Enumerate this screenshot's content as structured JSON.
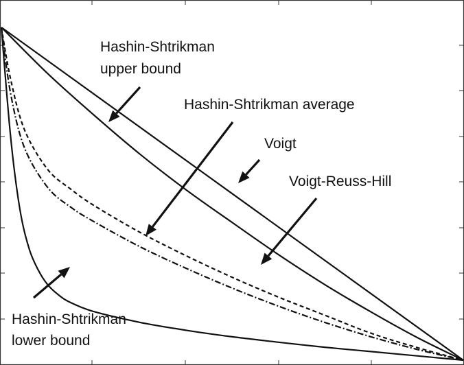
{
  "chart_data": {
    "type": "line",
    "xlim": [
      0,
      1
    ],
    "ylim": [
      0,
      1
    ],
    "grid": false,
    "legend": "none",
    "x_ticks_visible_labels": false,
    "y_ticks_visible_labels": false,
    "series": [
      {
        "name": "Voigt",
        "style": "solid",
        "x": [
          0,
          1
        ],
        "y": [
          0.924,
          0
        ]
      },
      {
        "name": "Hashin-Shtrikman upper bound",
        "style": "solid",
        "x": [
          0,
          0.1,
          0.2,
          0.3,
          0.4,
          0.5,
          0.6,
          0.7,
          0.8,
          0.9,
          1.0
        ],
        "y": [
          0.924,
          0.796,
          0.681,
          0.572,
          0.473,
          0.382,
          0.293,
          0.21,
          0.134,
          0.063,
          0
        ]
      },
      {
        "name": "Voigt-Reuss-Hill",
        "style": "dashed",
        "x": [
          0,
          0.02,
          0.05,
          0.1,
          0.15,
          0.2,
          0.3,
          0.4,
          0.5,
          0.6,
          0.7,
          0.8,
          0.9,
          1.0
        ],
        "y": [
          0.924,
          0.78,
          0.64,
          0.53,
          0.475,
          0.43,
          0.355,
          0.29,
          0.23,
          0.175,
          0.125,
          0.075,
          0.035,
          0
        ]
      },
      {
        "name": "Hashin-Shtrikman average",
        "style": "dash-dot",
        "x": [
          0,
          0.02,
          0.05,
          0.1,
          0.15,
          0.2,
          0.3,
          0.4,
          0.5,
          0.6,
          0.7,
          0.8,
          0.9,
          1.0
        ],
        "y": [
          0.924,
          0.74,
          0.59,
          0.48,
          0.425,
          0.385,
          0.315,
          0.255,
          0.2,
          0.15,
          0.105,
          0.065,
          0.03,
          0
        ]
      },
      {
        "name": "Hashin-Shtrikman lower bound",
        "style": "solid",
        "x": [
          0,
          0.02,
          0.04,
          0.06,
          0.08,
          0.1,
          0.125,
          0.15,
          0.2,
          0.3,
          0.4,
          0.5,
          0.6,
          0.7,
          0.8,
          0.9,
          1.0
        ],
        "y": [
          0.924,
          0.62,
          0.42,
          0.31,
          0.25,
          0.21,
          0.18,
          0.16,
          0.135,
          0.105,
          0.083,
          0.065,
          0.05,
          0.036,
          0.024,
          0.012,
          0
        ]
      }
    ],
    "annotations": [
      {
        "lines": [
          "Hashin-Shtrikman",
          "upper bound"
        ],
        "target": "Hashin-Shtrikman upper bound"
      },
      {
        "lines": [
          "Hashin-Shtrikman average"
        ],
        "target": "Hashin-Shtrikman average"
      },
      {
        "lines": [
          "Voigt"
        ],
        "target": "Voigt"
      },
      {
        "lines": [
          "Voigt-Reuss-Hill"
        ],
        "target": "Voigt-Reuss-Hill"
      },
      {
        "lines": [
          "Hashin-Shtrikman",
          "lower bound"
        ],
        "target": "Hashin-Shtrikman lower bound"
      }
    ]
  }
}
